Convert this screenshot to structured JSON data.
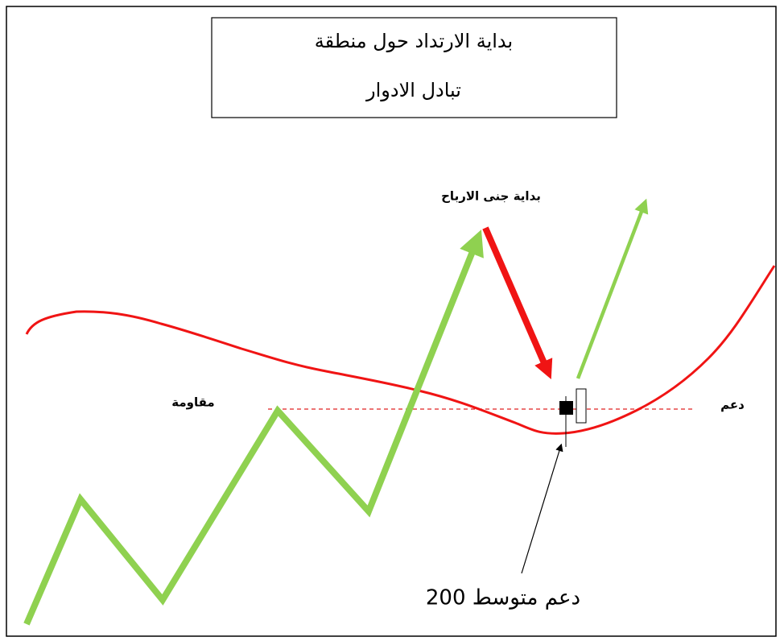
{
  "title": {
    "line1": "بداية الارتداد حول منطقة",
    "line2": "تبادل الادوار"
  },
  "labels": {
    "profit_taking": "بداية جنى الارباح",
    "resistance": "مقاومة",
    "support": "دعم",
    "ma_support": "دعم متوسط 200"
  }
}
